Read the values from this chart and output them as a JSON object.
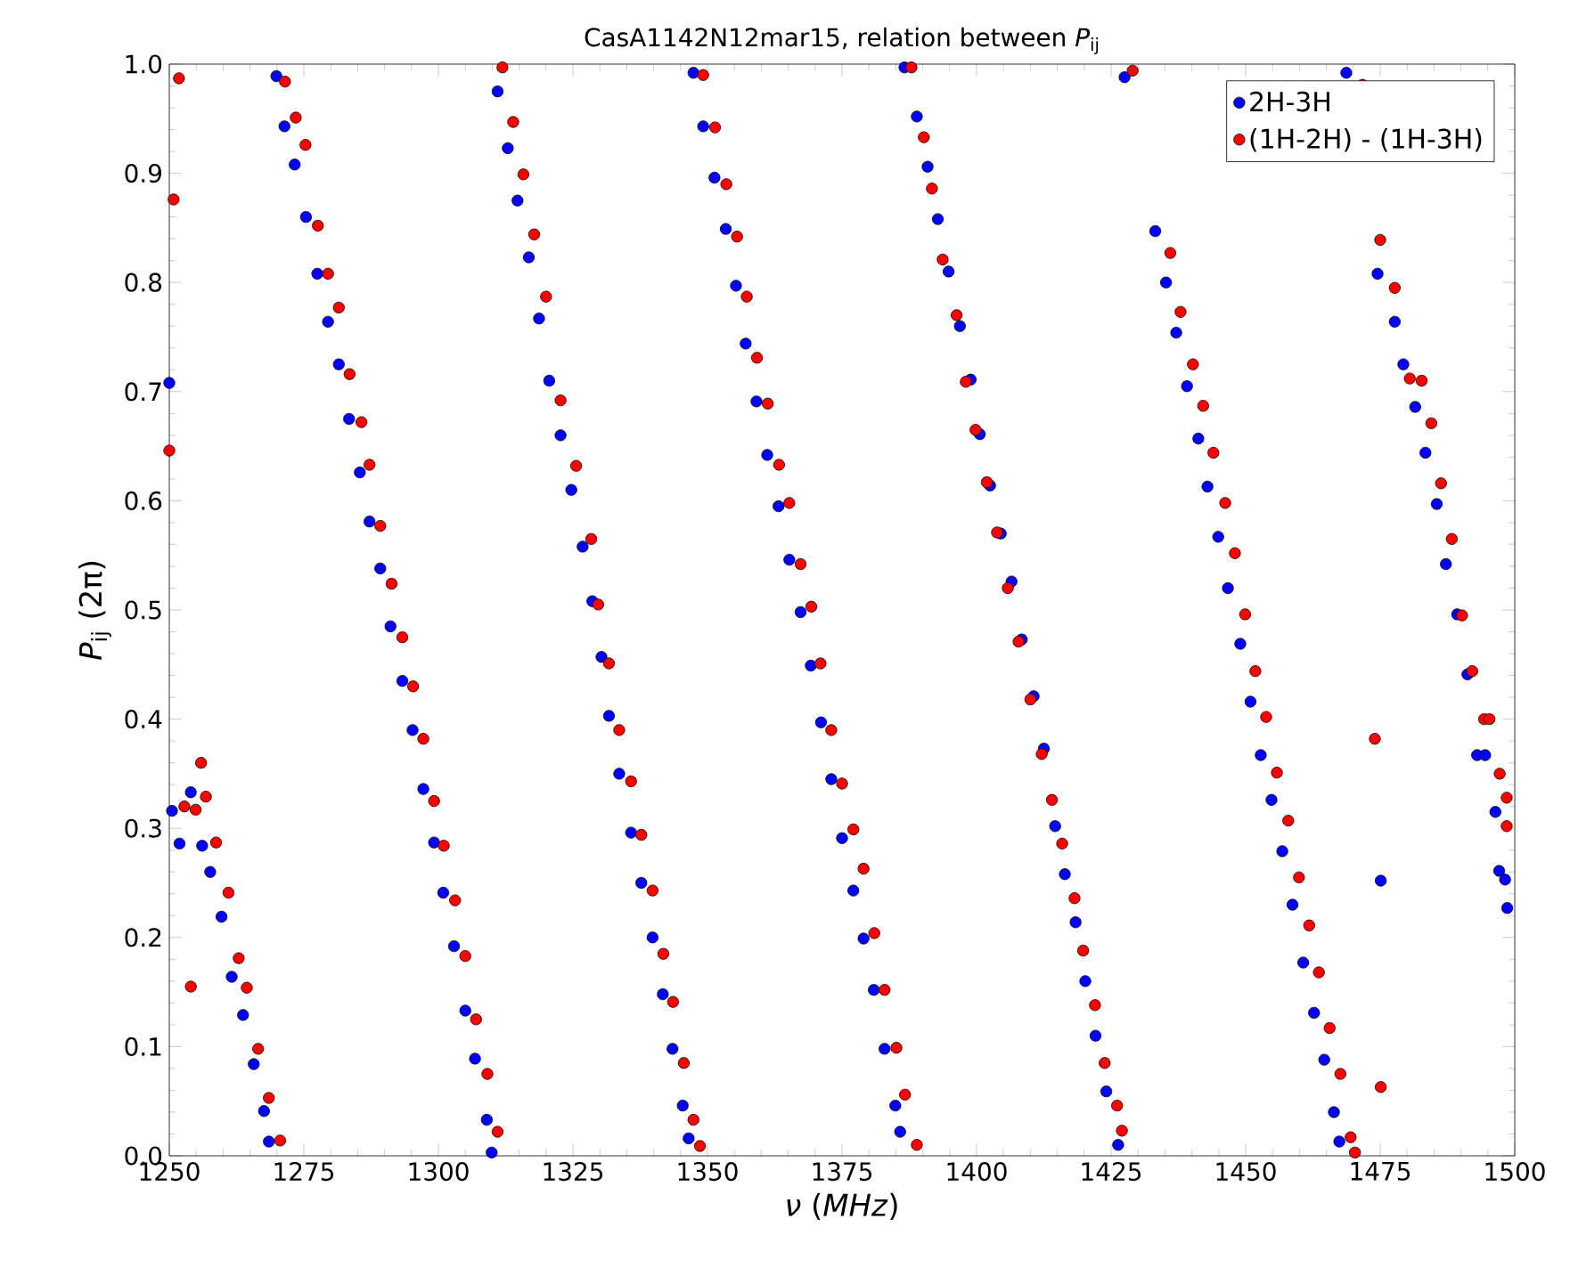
{
  "chart_data": {
    "type": "scatter",
    "title": "CasA1142N12mar15, relation between *P*$_{ij}$",
    "xlabel": "*ν* (*MHz*)",
    "ylabel": "*P*$_{ij}$ (2π)",
    "xlim": [
      1250,
      1500
    ],
    "ylim": [
      0,
      1
    ],
    "xticks": [
      1250,
      1275,
      1300,
      1325,
      1350,
      1375,
      1400,
      1425,
      1450,
      1475,
      1500
    ],
    "yticks": [
      {
        "value": 0,
        "label": "0.0"
      },
      {
        "value": 0.1,
        "label": "0.1"
      },
      {
        "value": 0.2,
        "label": "0.2"
      },
      {
        "value": 0.3,
        "label": "0.3"
      },
      {
        "value": 0.4,
        "label": "0.4"
      },
      {
        "value": 0.5,
        "label": "0.5"
      },
      {
        "value": 0.6,
        "label": "0.6"
      },
      {
        "value": 0.7,
        "label": "0.7"
      },
      {
        "value": 0.8,
        "label": "0.8"
      },
      {
        "value": 0.9,
        "label": "0.9"
      },
      {
        "value": 1,
        "label": "1.0"
      }
    ],
    "legend": "top right",
    "marker": "circle",
    "series": [
      {
        "name": "2H-3H",
        "color": "#0000ff",
        "x": [
          1250,
          1250.5,
          1251.9,
          1254,
          1256.1,
          1257.6,
          1259.7,
          1261.6,
          1263.7,
          1265.7,
          1267.6,
          1268.5,
          1269.9,
          1271.4,
          1273.3,
          1275.4,
          1277.5,
          1279.5,
          1281.5,
          1283.4,
          1285.4,
          1287.2,
          1289.2,
          1291.1,
          1293.3,
          1295.2,
          1297.2,
          1299.2,
          1300.9,
          1302.9,
          1305,
          1306.8,
          1309,
          1309.9,
          1311,
          1312.9,
          1314.7,
          1316.8,
          1318.7,
          1320.6,
          1322.7,
          1324.7,
          1326.8,
          1328.6,
          1330.3,
          1331.7,
          1333.6,
          1335.8,
          1337.7,
          1339.8,
          1341.7,
          1343.5,
          1345.4,
          1346.5,
          1347.4,
          1349.2,
          1351.3,
          1353.4,
          1355.3,
          1357.1,
          1359.1,
          1361.1,
          1363.2,
          1365.2,
          1367.3,
          1369.2,
          1371.1,
          1373,
          1375,
          1377.1,
          1379,
          1380.9,
          1382.9,
          1384.9,
          1385.8,
          1386.6,
          1388.9,
          1390.9,
          1392.8,
          1394.8,
          1396.9,
          1398.9,
          1400.6,
          1402.5,
          1404.5,
          1406.5,
          1408.4,
          1410.6,
          1412.5,
          1414.6,
          1416.4,
          1418.4,
          1420.2,
          1422.1,
          1424.1,
          1426.3,
          1427.5,
          1433.2,
          1435.2,
          1437.1,
          1439.1,
          1441.2,
          1442.9,
          1444.9,
          1446.7,
          1449,
          1450.9,
          1452.8,
          1454.8,
          1456.8,
          1458.7,
          1460.7,
          1462.7,
          1464.6,
          1466.4,
          1467.4,
          1475.1,
          1468.7,
          1474.5,
          1477.7,
          1479.3,
          1481.5,
          1483.4,
          1485.5,
          1487.2,
          1489.3,
          1491.2,
          1493,
          1494.5,
          1496.4,
          1497.1,
          1498.2,
          1498.6
        ],
        "values": [
          0.708,
          0.316,
          0.286,
          0.333,
          0.284,
          0.26,
          0.219,
          0.164,
          0.129,
          0.084,
          0.041,
          0.013,
          0.989,
          0.943,
          0.908,
          0.86,
          0.808,
          0.764,
          0.725,
          0.675,
          0.626,
          0.581,
          0.538,
          0.485,
          0.435,
          0.39,
          0.336,
          0.287,
          0.241,
          0.192,
          0.133,
          0.089,
          0.033,
          0.003,
          0.975,
          0.923,
          0.875,
          0.823,
          0.767,
          0.71,
          0.66,
          0.61,
          0.558,
          0.508,
          0.457,
          0.403,
          0.35,
          0.296,
          0.25,
          0.2,
          0.148,
          0.098,
          0.046,
          0.016,
          0.992,
          0.943,
          0.896,
          0.849,
          0.797,
          0.744,
          0.691,
          0.642,
          0.595,
          0.546,
          0.498,
          0.449,
          0.397,
          0.345,
          0.291,
          0.243,
          0.199,
          0.152,
          0.098,
          0.046,
          0.022,
          0.997,
          0.952,
          0.906,
          0.858,
          0.81,
          0.76,
          0.711,
          0.661,
          0.614,
          0.57,
          0.526,
          0.473,
          0.421,
          0.373,
          0.302,
          0.258,
          0.214,
          0.16,
          0.11,
          0.059,
          0.01,
          0.988,
          0.847,
          0.8,
          0.754,
          0.705,
          0.657,
          0.613,
          0.567,
          0.52,
          0.469,
          0.416,
          0.367,
          0.326,
          0.279,
          0.23,
          0.177,
          0.131,
          0.088,
          0.04,
          0.013,
          0.252,
          0.992,
          0.808,
          0.764,
          0.725,
          0.686,
          0.644,
          0.597,
          0.542,
          0.496,
          0.441,
          0.367,
          0.367,
          0.315,
          0.261,
          0.253,
          0.227
        ]
      },
      {
        "name": "(1H-2H) - (1H-3H)",
        "color": "#ff0000",
        "x": [
          1250,
          1250.8,
          1251.8,
          1252.8,
          1254,
          1254.9,
          1255.9,
          1256.8,
          1258.7,
          1261,
          1262.9,
          1264.4,
          1266.5,
          1268.5,
          1270.6,
          1271.5,
          1273.5,
          1275.3,
          1277.6,
          1279.5,
          1281.5,
          1283.5,
          1285.7,
          1287.2,
          1289.2,
          1291.3,
          1293.3,
          1295.3,
          1297.2,
          1299.2,
          1301,
          1303.1,
          1305,
          1307,
          1309.1,
          1311,
          1311.9,
          1313.9,
          1315.8,
          1317.8,
          1320,
          1322.7,
          1325.6,
          1328.4,
          1329.7,
          1331.7,
          1333.6,
          1335.8,
          1337.7,
          1339.8,
          1341.8,
          1343.6,
          1345.6,
          1347.4,
          1348.6,
          1349.2,
          1351.4,
          1353.5,
          1355.5,
          1357.3,
          1359.2,
          1361.2,
          1363.3,
          1365.2,
          1367.3,
          1369.3,
          1371,
          1373,
          1375,
          1377.1,
          1379,
          1381,
          1382.9,
          1385.1,
          1386.7,
          1388.9,
          1387.9,
          1390.2,
          1391.7,
          1393.7,
          1396.3,
          1398,
          1399.8,
          1401.9,
          1403.8,
          1405.8,
          1407.8,
          1410,
          1412.1,
          1414,
          1415.9,
          1418.2,
          1419.8,
          1422,
          1423.8,
          1426.1,
          1427,
          1429,
          1436,
          1437.9,
          1440.2,
          1442.1,
          1444,
          1446.2,
          1448,
          1449.9,
          1451.8,
          1453.8,
          1455.8,
          1457.9,
          1459.9,
          1461.8,
          1463.6,
          1465.6,
          1467.6,
          1469.5,
          1470.3,
          1474,
          1475.1,
          1471.7,
          1475,
          1477.7,
          1480.5,
          1482.7,
          1484.5,
          1486.3,
          1488.3,
          1490.2,
          1492.1,
          1494.3,
          1495.3,
          1497.2,
          1498.5,
          1498.5
        ],
        "values": [
          0.646,
          0.876,
          0.987,
          0.32,
          0.155,
          0.317,
          0.36,
          0.329,
          0.287,
          0.241,
          0.181,
          0.154,
          0.098,
          0.053,
          0.014,
          0.984,
          0.951,
          0.926,
          0.852,
          0.808,
          0.777,
          0.716,
          0.672,
          0.633,
          0.577,
          0.524,
          0.475,
          0.43,
          0.382,
          0.325,
          0.284,
          0.234,
          0.183,
          0.125,
          0.075,
          0.022,
          0.997,
          0.947,
          0.899,
          0.844,
          0.787,
          0.692,
          0.632,
          0.565,
          0.505,
          0.451,
          0.39,
          0.343,
          0.294,
          0.243,
          0.185,
          0.141,
          0.085,
          0.033,
          0.009,
          0.99,
          0.942,
          0.89,
          0.842,
          0.787,
          0.731,
          0.689,
          0.633,
          0.598,
          0.542,
          0.503,
          0.451,
          0.39,
          0.341,
          0.299,
          0.263,
          0.204,
          0.152,
          0.099,
          0.056,
          0.01,
          0.997,
          0.933,
          0.886,
          0.821,
          0.77,
          0.709,
          0.665,
          0.617,
          0.571,
          0.52,
          0.471,
          0.418,
          0.368,
          0.326,
          0.286,
          0.236,
          0.188,
          0.138,
          0.085,
          0.046,
          0.023,
          0.994,
          0.827,
          0.773,
          0.725,
          0.687,
          0.644,
          0.598,
          0.552,
          0.496,
          0.444,
          0.402,
          0.351,
          0.307,
          0.255,
          0.211,
          0.168,
          0.117,
          0.075,
          0.017,
          0.003,
          0.382,
          0.063,
          0.981,
          0.839,
          0.795,
          0.712,
          0.71,
          0.671,
          0.616,
          0.565,
          0.495,
          0.444,
          0.4,
          0.4,
          0.35,
          0.328,
          0.302
        ]
      }
    ]
  }
}
